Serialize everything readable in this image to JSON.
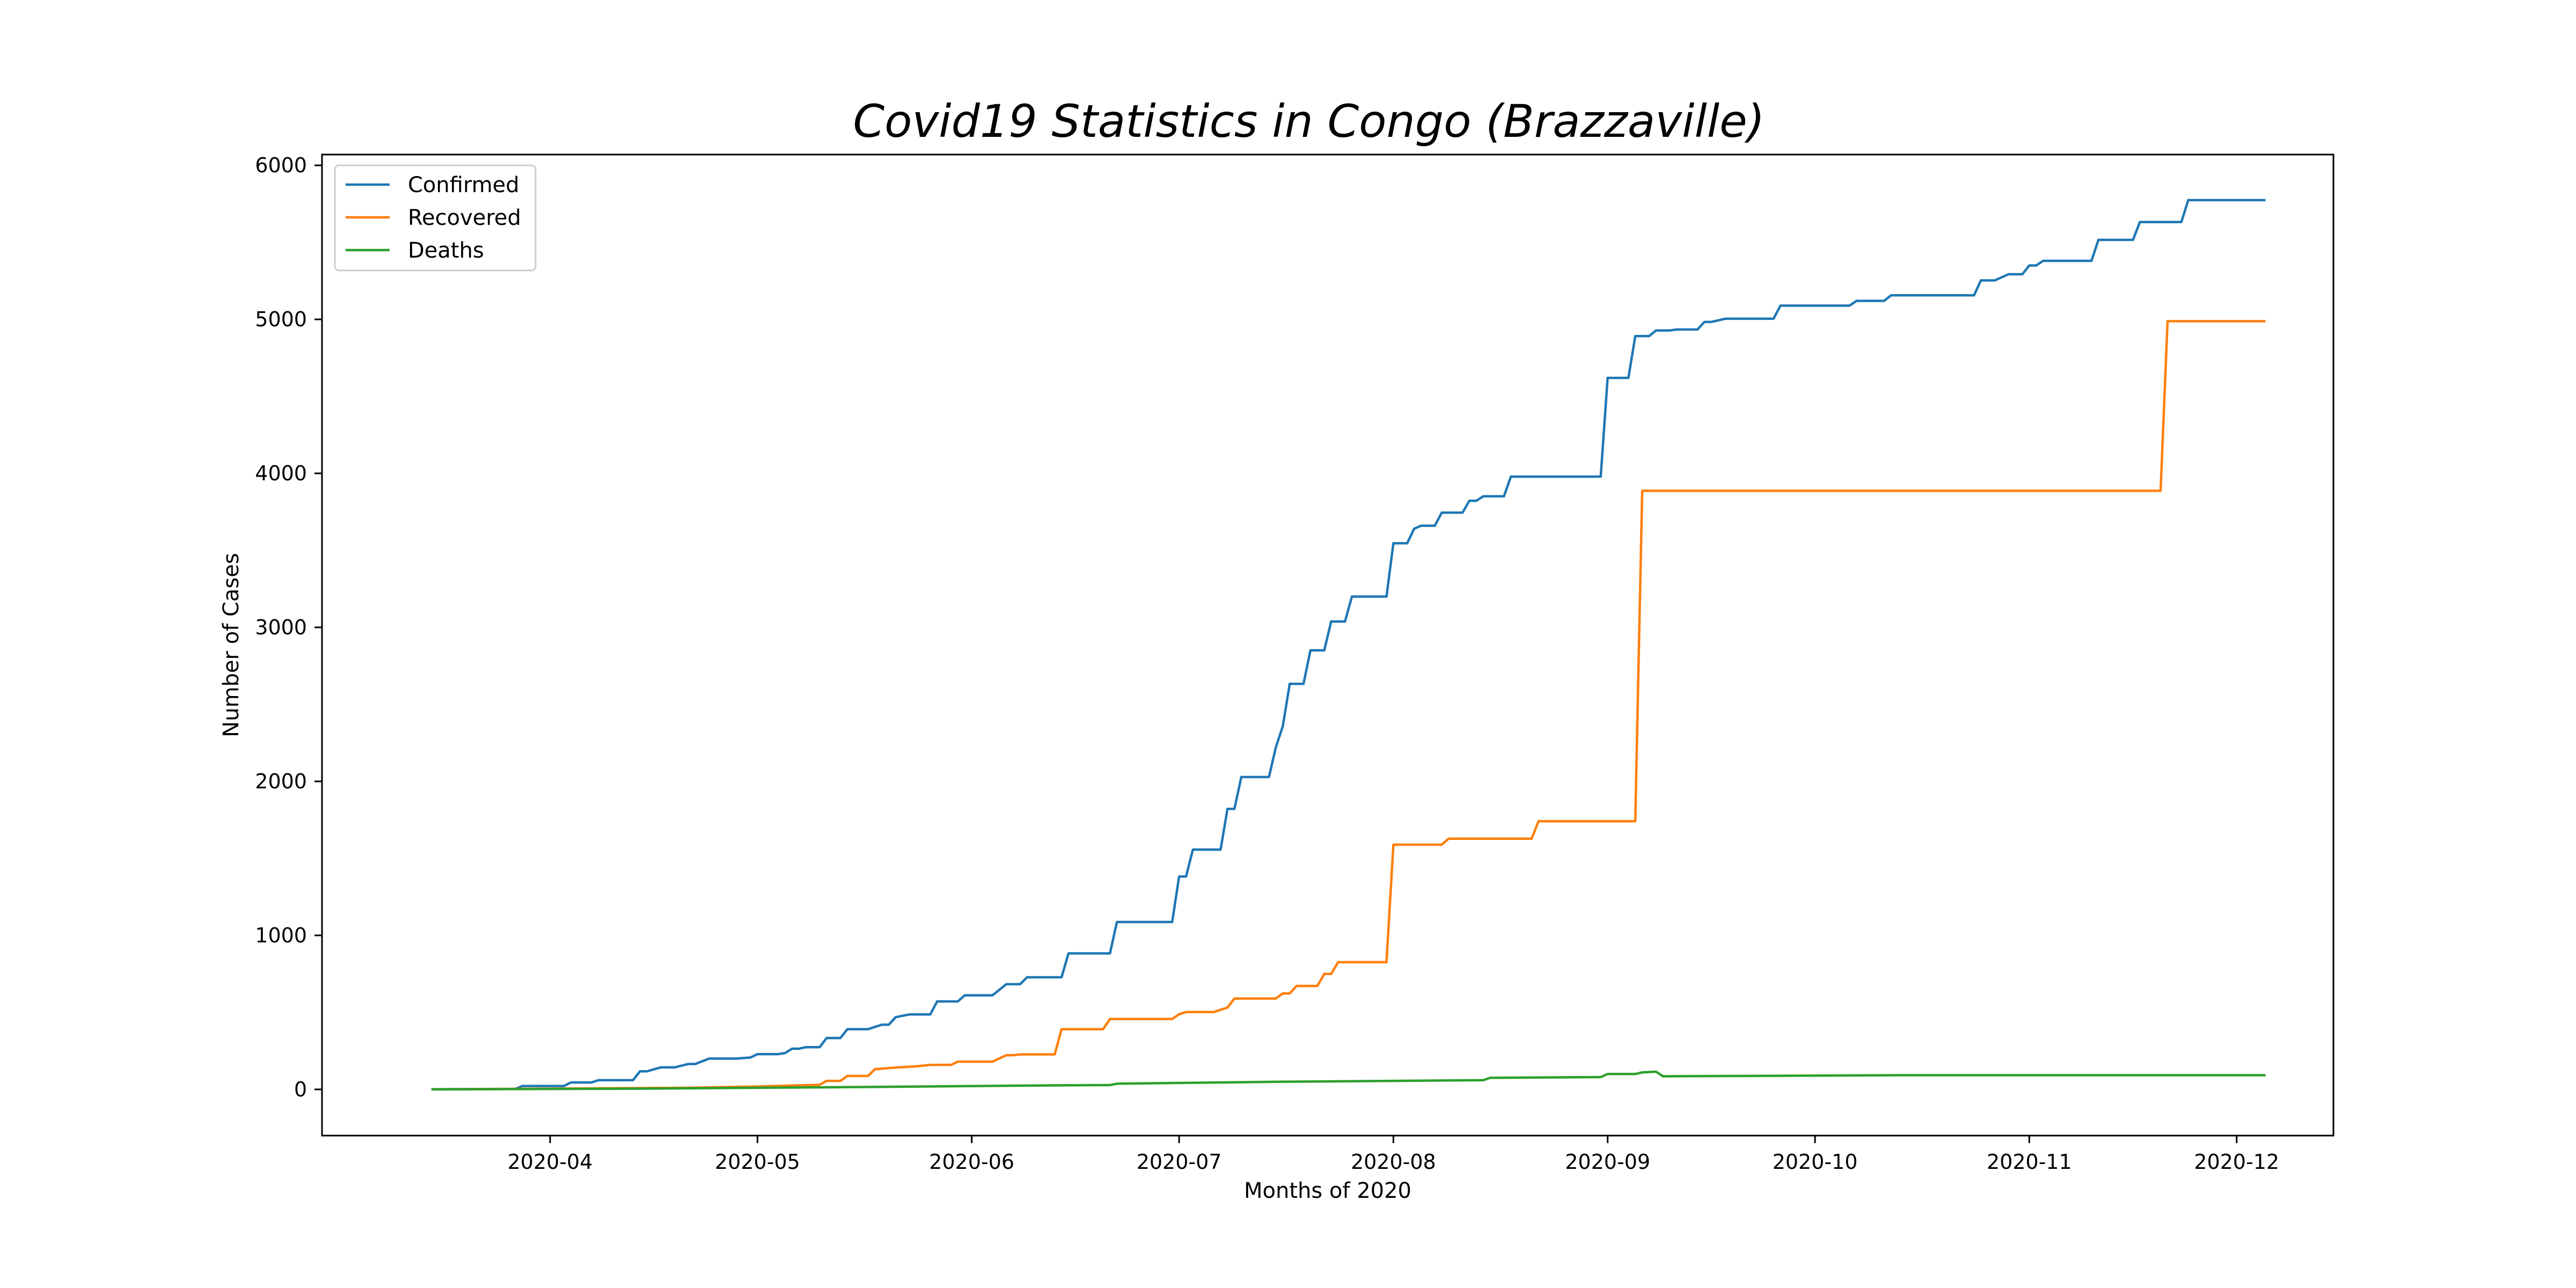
{
  "chart_data": {
    "type": "line",
    "title": "Covid19 Statistics in Congo (Brazzaville)",
    "xlabel": "Months of 2020",
    "ylabel": "Number of Cases",
    "x_range": [
      "2020-02-28",
      "2020-12-15"
    ],
    "ylim": [
      -300,
      6070
    ],
    "x_ticks": [
      "2020-04-01",
      "2020-05-01",
      "2020-06-01",
      "2020-07-01",
      "2020-08-01",
      "2020-09-01",
      "2020-10-01",
      "2020-11-01",
      "2020-12-01"
    ],
    "x_tick_labels": [
      "2020-04",
      "2020-05",
      "2020-06",
      "2020-07",
      "2020-08",
      "2020-09",
      "2020-10",
      "2020-11",
      "2020-12"
    ],
    "y_ticks": [
      0,
      1000,
      2000,
      3000,
      4000,
      5000,
      6000
    ],
    "y_tick_labels": [
      "0",
      "1000",
      "2000",
      "3000",
      "4000",
      "5000",
      "6000"
    ],
    "legend_position": "top-left",
    "grid": false,
    "series": [
      {
        "name": "Confirmed",
        "color": "#1f77b4",
        "points": [
          [
            "2020-03-15",
            1
          ],
          [
            "2020-03-27",
            3
          ],
          [
            "2020-03-28",
            22
          ],
          [
            "2020-04-03",
            22
          ],
          [
            "2020-04-04",
            45
          ],
          [
            "2020-04-07",
            45
          ],
          [
            "2020-04-08",
            60
          ],
          [
            "2020-04-13",
            60
          ],
          [
            "2020-04-14",
            117
          ],
          [
            "2020-04-15",
            117
          ],
          [
            "2020-04-17",
            143
          ],
          [
            "2020-04-19",
            143
          ],
          [
            "2020-04-21",
            165
          ],
          [
            "2020-04-22",
            165
          ],
          [
            "2020-04-24",
            200
          ],
          [
            "2020-04-28",
            200
          ],
          [
            "2020-04-30",
            207
          ],
          [
            "2020-05-01",
            229
          ],
          [
            "2020-05-04",
            229
          ],
          [
            "2020-05-05",
            236
          ],
          [
            "2020-05-06",
            264
          ],
          [
            "2020-05-07",
            264
          ],
          [
            "2020-05-08",
            274
          ],
          [
            "2020-05-10",
            274
          ],
          [
            "2020-05-11",
            333
          ],
          [
            "2020-05-13",
            333
          ],
          [
            "2020-05-14",
            391
          ],
          [
            "2020-05-17",
            391
          ],
          [
            "2020-05-19",
            420
          ],
          [
            "2020-05-20",
            420
          ],
          [
            "2020-05-21",
            469
          ],
          [
            "2020-05-23",
            487
          ],
          [
            "2020-05-26",
            487
          ],
          [
            "2020-05-27",
            571
          ],
          [
            "2020-05-30",
            571
          ],
          [
            "2020-05-31",
            611
          ],
          [
            "2020-06-04",
            611
          ],
          [
            "2020-06-06",
            683
          ],
          [
            "2020-06-08",
            683
          ],
          [
            "2020-06-09",
            728
          ],
          [
            "2020-06-14",
            728
          ],
          [
            "2020-06-15",
            883
          ],
          [
            "2020-06-21",
            883
          ],
          [
            "2020-06-22",
            1087
          ],
          [
            "2020-06-30",
            1087
          ],
          [
            "2020-07-01",
            1382
          ],
          [
            "2020-07-02",
            1382
          ],
          [
            "2020-07-03",
            1557
          ],
          [
            "2020-07-07",
            1557
          ],
          [
            "2020-07-08",
            1821
          ],
          [
            "2020-07-09",
            1821
          ],
          [
            "2020-07-10",
            2028
          ],
          [
            "2020-07-14",
            2028
          ],
          [
            "2020-07-15",
            2222
          ],
          [
            "2020-07-16",
            2358
          ],
          [
            "2020-07-17",
            2633
          ],
          [
            "2020-07-19",
            2633
          ],
          [
            "2020-07-20",
            2851
          ],
          [
            "2020-07-22",
            2851
          ],
          [
            "2020-07-23",
            3038
          ],
          [
            "2020-07-25",
            3038
          ],
          [
            "2020-07-26",
            3200
          ],
          [
            "2020-07-31",
            3200
          ],
          [
            "2020-08-01",
            3546
          ],
          [
            "2020-08-03",
            3546
          ],
          [
            "2020-08-04",
            3640
          ],
          [
            "2020-08-05",
            3660
          ],
          [
            "2020-08-07",
            3660
          ],
          [
            "2020-08-08",
            3745
          ],
          [
            "2020-08-11",
            3745
          ],
          [
            "2020-08-12",
            3822
          ],
          [
            "2020-08-13",
            3822
          ],
          [
            "2020-08-14",
            3851
          ],
          [
            "2020-08-17",
            3851
          ],
          [
            "2020-08-18",
            3979
          ],
          [
            "2020-08-31",
            3979
          ],
          [
            "2020-09-01",
            4620
          ],
          [
            "2020-09-04",
            4620
          ],
          [
            "2020-09-05",
            4891
          ],
          [
            "2020-09-07",
            4891
          ],
          [
            "2020-09-08",
            4928
          ],
          [
            "2020-09-10",
            4928
          ],
          [
            "2020-09-11",
            4934
          ],
          [
            "2020-09-14",
            4934
          ],
          [
            "2020-09-15",
            4983
          ],
          [
            "2020-09-16",
            4983
          ],
          [
            "2020-09-18",
            5004
          ],
          [
            "2020-09-25",
            5004
          ],
          [
            "2020-09-26",
            5089
          ],
          [
            "2020-10-06",
            5089
          ],
          [
            "2020-10-07",
            5120
          ],
          [
            "2020-10-11",
            5120
          ],
          [
            "2020-10-12",
            5156
          ],
          [
            "2020-10-24",
            5156
          ],
          [
            "2020-10-25",
            5253
          ],
          [
            "2020-10-27",
            5253
          ],
          [
            "2020-10-29",
            5293
          ],
          [
            "2020-10-31",
            5293
          ],
          [
            "2020-11-01",
            5350
          ],
          [
            "2020-11-02",
            5350
          ],
          [
            "2020-11-03",
            5380
          ],
          [
            "2020-11-10",
            5380
          ],
          [
            "2020-11-11",
            5516
          ],
          [
            "2020-11-16",
            5516
          ],
          [
            "2020-11-17",
            5632
          ],
          [
            "2020-11-23",
            5632
          ],
          [
            "2020-11-24",
            5774
          ],
          [
            "2020-12-05",
            5774
          ]
        ]
      },
      {
        "name": "Recovered",
        "color": "#ff7f0e",
        "points": [
          [
            "2020-03-15",
            0
          ],
          [
            "2020-04-20",
            10
          ],
          [
            "2020-05-01",
            19
          ],
          [
            "2020-05-06",
            25
          ],
          [
            "2020-05-10",
            30
          ],
          [
            "2020-05-11",
            55
          ],
          [
            "2020-05-13",
            55
          ],
          [
            "2020-05-14",
            87
          ],
          [
            "2020-05-17",
            87
          ],
          [
            "2020-05-18",
            131
          ],
          [
            "2020-05-21",
            142
          ],
          [
            "2020-05-24",
            150
          ],
          [
            "2020-05-26",
            159
          ],
          [
            "2020-05-29",
            159
          ],
          [
            "2020-05-30",
            180
          ],
          [
            "2020-06-04",
            180
          ],
          [
            "2020-06-06",
            222
          ],
          [
            "2020-06-07",
            222
          ],
          [
            "2020-06-08",
            227
          ],
          [
            "2020-06-13",
            227
          ],
          [
            "2020-06-14",
            391
          ],
          [
            "2020-06-20",
            391
          ],
          [
            "2020-06-21",
            457
          ],
          [
            "2020-06-30",
            457
          ],
          [
            "2020-07-01",
            488
          ],
          [
            "2020-07-02",
            502
          ],
          [
            "2020-07-06",
            502
          ],
          [
            "2020-07-08",
            531
          ],
          [
            "2020-07-09",
            590
          ],
          [
            "2020-07-15",
            590
          ],
          [
            "2020-07-16",
            623
          ],
          [
            "2020-07-17",
            623
          ],
          [
            "2020-07-18",
            672
          ],
          [
            "2020-07-21",
            672
          ],
          [
            "2020-07-22",
            750
          ],
          [
            "2020-07-23",
            750
          ],
          [
            "2020-07-24",
            826
          ],
          [
            "2020-07-31",
            826
          ],
          [
            "2020-08-01",
            1589
          ],
          [
            "2020-08-08",
            1589
          ],
          [
            "2020-08-09",
            1628
          ],
          [
            "2020-08-21",
            1628
          ],
          [
            "2020-08-22",
            1741
          ],
          [
            "2020-09-05",
            1741
          ],
          [
            "2020-09-06",
            3887
          ],
          [
            "2020-11-20",
            3887
          ],
          [
            "2020-11-21",
            4988
          ],
          [
            "2020-12-05",
            4988
          ]
        ]
      },
      {
        "name": "Deaths",
        "color": "#2ca02c",
        "points": [
          [
            "2020-03-15",
            0
          ],
          [
            "2020-04-15",
            5
          ],
          [
            "2020-05-15",
            15
          ],
          [
            "2020-06-15",
            27
          ],
          [
            "2020-06-21",
            28
          ],
          [
            "2020-06-22",
            37
          ],
          [
            "2020-07-01",
            42
          ],
          [
            "2020-07-15",
            49
          ],
          [
            "2020-08-01",
            55
          ],
          [
            "2020-08-14",
            60
          ],
          [
            "2020-08-15",
            75
          ],
          [
            "2020-08-31",
            80
          ],
          [
            "2020-09-01",
            100
          ],
          [
            "2020-09-05",
            100
          ],
          [
            "2020-09-06",
            110
          ],
          [
            "2020-09-08",
            115
          ],
          [
            "2020-09-09",
            85
          ],
          [
            "2020-10-13",
            92
          ],
          [
            "2020-12-05",
            92
          ]
        ]
      }
    ]
  }
}
